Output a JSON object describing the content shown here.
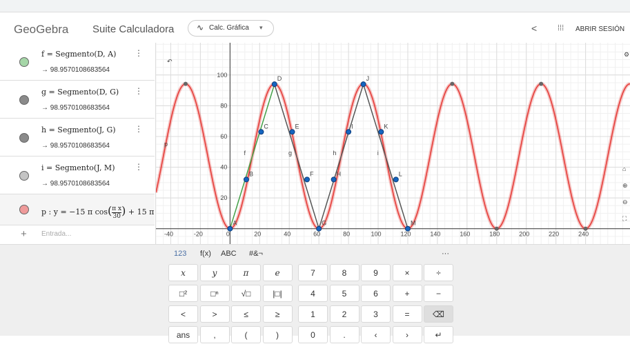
{
  "header": {
    "logo": "GeoGebra",
    "app": "Suite Calculadora",
    "mode": "Calc. Gráfica",
    "login": "ABRIR SESIÓN"
  },
  "algebra": {
    "items": [
      {
        "definition": "f = Segmento(D, A)",
        "value": 98.9570108683564,
        "color": "#a5d6a7"
      },
      {
        "definition": "g = Segmento(D, G)",
        "value": 98.9570108683564,
        "color": "#8a8a8a"
      },
      {
        "definition": "h = Segmento(J, G)",
        "value": 98.9570108683564,
        "color": "#8a8a8a"
      },
      {
        "definition": "i = Segmento(J, M)",
        "value": 98.9570108683564,
        "color": "#c4c4c4"
      }
    ],
    "function": {
      "head": "p : y = −15 π cos",
      "num": "π x",
      "den": "30",
      "tail": "+ 15 π",
      "color": "#ef9a9a"
    },
    "input_placeholder": "Entrada..."
  },
  "graph": {
    "xlim": [
      -50,
      270
    ],
    "ylim": [
      -10,
      121
    ],
    "xticks": [
      -40,
      -20,
      0,
      20,
      40,
      60,
      80,
      100,
      120,
      140,
      160,
      180,
      200,
      220,
      240
    ],
    "yticks": [
      20,
      40,
      60,
      80,
      100
    ],
    "curve": {
      "label": "p",
      "color": "#e53935"
    },
    "points": [
      {
        "label": "A",
        "x": 0,
        "y": 0
      },
      {
        "label": "B",
        "x": 11,
        "y": 32
      },
      {
        "label": "C",
        "x": 21,
        "y": 63
      },
      {
        "label": "D",
        "x": 30,
        "y": 94
      },
      {
        "label": "E",
        "x": 42,
        "y": 63
      },
      {
        "label": "F",
        "x": 52,
        "y": 32
      },
      {
        "label": "G",
        "x": 60,
        "y": 0
      },
      {
        "label": "H",
        "x": 70,
        "y": 32
      },
      {
        "label": "I",
        "x": 80,
        "y": 63
      },
      {
        "label": "J",
        "x": 90,
        "y": 94
      },
      {
        "label": "K",
        "x": 102,
        "y": 63
      },
      {
        "label": "L",
        "x": 112,
        "y": 32
      },
      {
        "label": "M",
        "x": 120,
        "y": 0
      }
    ],
    "segments": [
      {
        "name": "f",
        "from": 3,
        "to": 0,
        "color": "#43a047"
      },
      {
        "name": "g",
        "from": 3,
        "to": 6,
        "color": "#555555"
      },
      {
        "name": "h",
        "from": 9,
        "to": 6,
        "color": "#555555"
      },
      {
        "name": "i",
        "from": 9,
        "to": 12,
        "color": "#555555"
      }
    ]
  },
  "keyboard": {
    "tabs": [
      "123",
      "f(x)",
      "ABC",
      "#&¬",
      "···"
    ],
    "left": [
      [
        "x",
        "y",
        "π",
        "e"
      ],
      [
        "□²",
        "□ⁿ",
        "√□",
        "|□|"
      ],
      [
        "<",
        ">",
        "≤",
        "≥"
      ],
      [
        "ans",
        ",",
        "(",
        ")"
      ]
    ],
    "right": [
      [
        "7",
        "8",
        "9",
        "×",
        "÷"
      ],
      [
        "4",
        "5",
        "6",
        "+",
        "−"
      ],
      [
        "1",
        "2",
        "3",
        "=",
        "⌫"
      ],
      [
        "0",
        ".",
        "‹",
        "›",
        "↵"
      ]
    ]
  }
}
